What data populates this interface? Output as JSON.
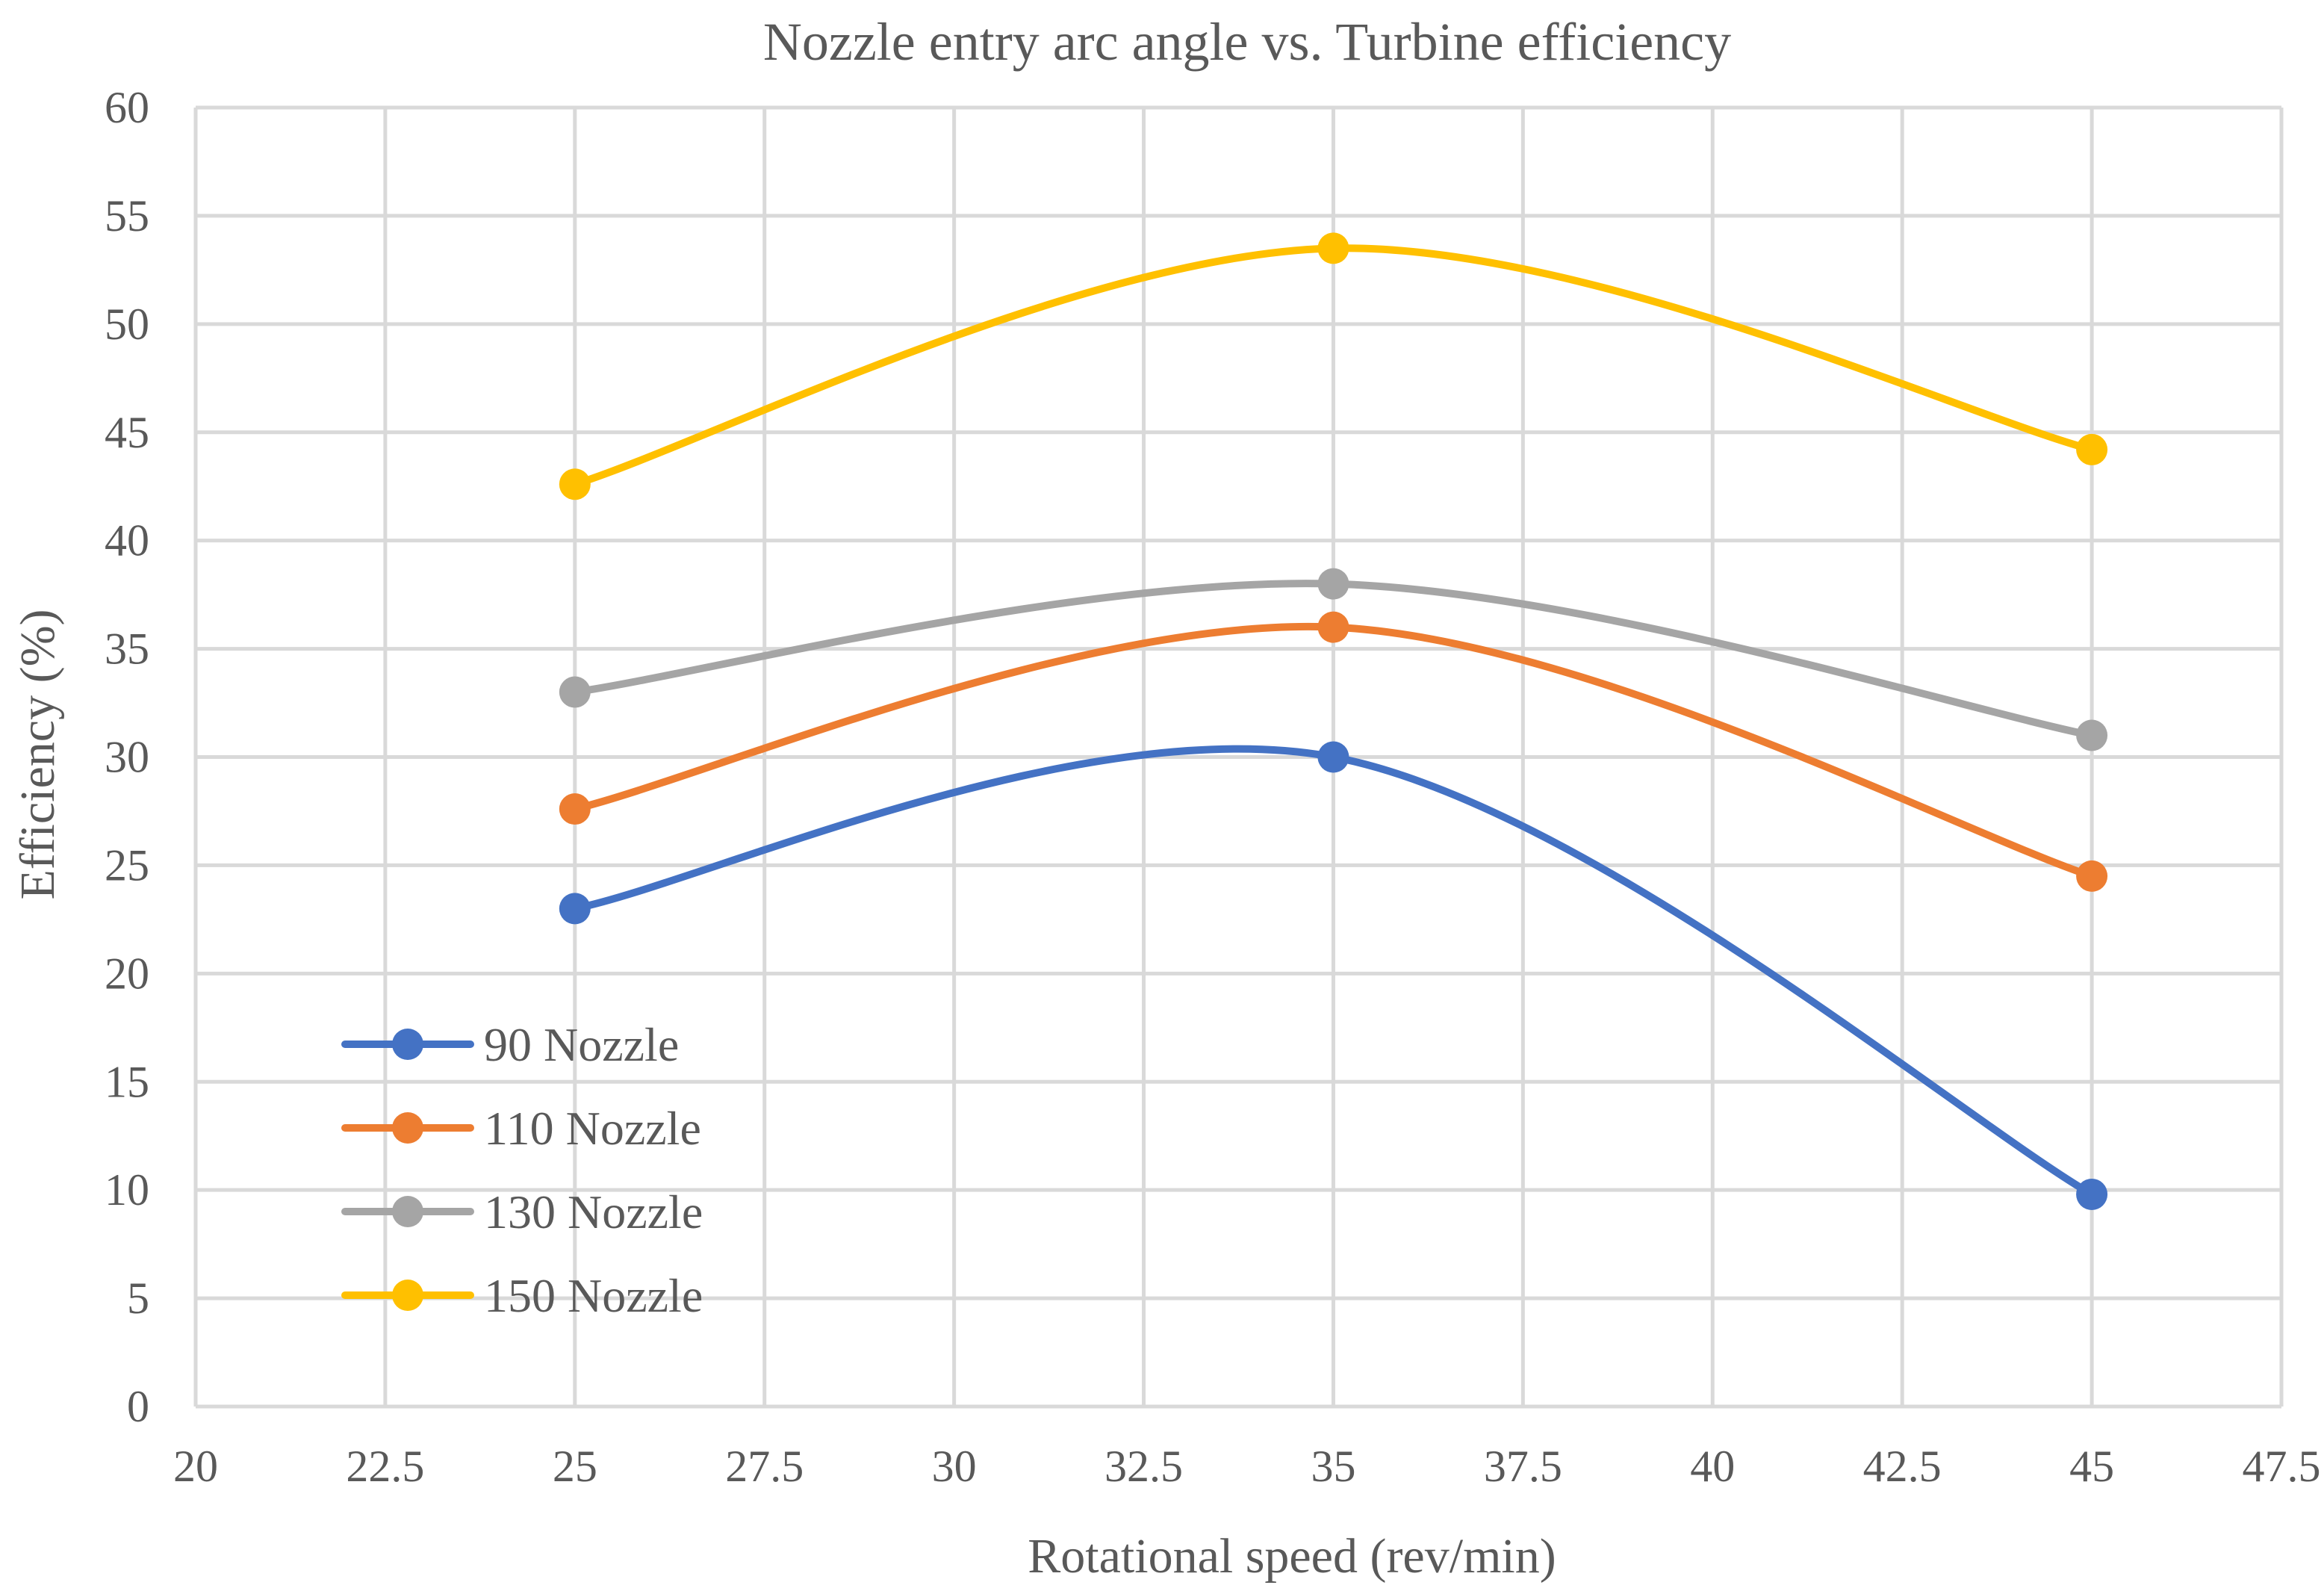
{
  "chart_data": {
    "type": "line",
    "title": "Nozzle entry arc angle vs. Turbine efficiency",
    "xlabel": "Rotational speed (rev/min)",
    "ylabel": "Efficiency (%)",
    "xlim": [
      20,
      47.5
    ],
    "ylim": [
      0,
      60
    ],
    "x_ticks": [
      "20",
      "22.5",
      "25",
      "27.5",
      "30",
      "32.5",
      "35",
      "37.5",
      "40",
      "42.5",
      "45",
      "47.5"
    ],
    "y_ticks": [
      "0",
      "5",
      "10",
      "15",
      "20",
      "25",
      "30",
      "35",
      "40",
      "45",
      "50",
      "55",
      "60"
    ],
    "grid": true,
    "smooth": true,
    "legend_position": "bottom-left",
    "x": [
      25,
      35,
      45
    ],
    "series": [
      {
        "name": "90 Nozzle",
        "values": [
          23,
          30,
          9.8
        ],
        "color": "#4472C4"
      },
      {
        "name": "110 Nozzle",
        "values": [
          27.6,
          36,
          24.5
        ],
        "color": "#ED7D31"
      },
      {
        "name": "130 Nozzle",
        "values": [
          33,
          38,
          31
        ],
        "color": "#A5A5A5"
      },
      {
        "name": "150 Nozzle",
        "values": [
          42.6,
          53.5,
          44.2
        ],
        "color": "#FFC000"
      }
    ]
  }
}
